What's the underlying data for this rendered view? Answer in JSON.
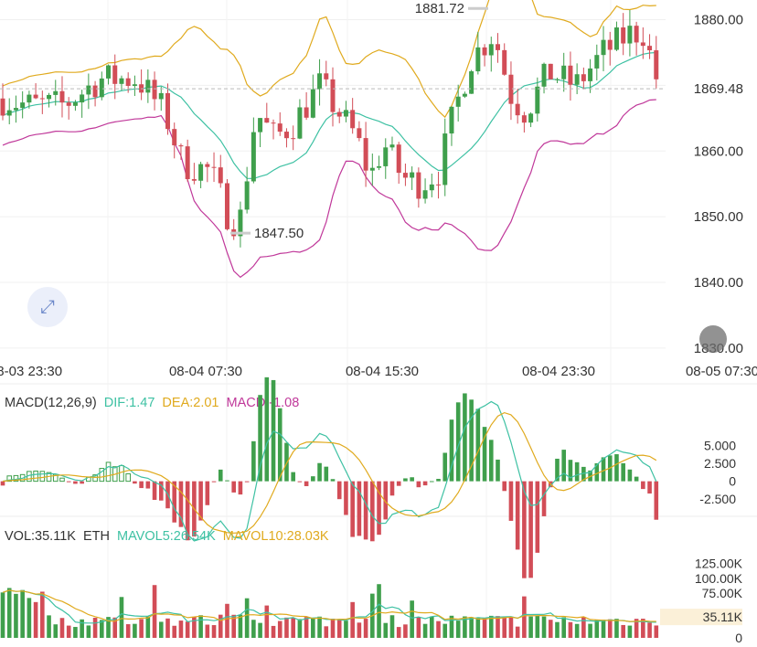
{
  "chart_data": [
    {
      "type": "candlestick",
      "pane": "price",
      "y_axis": {
        "ticks": [
          1830,
          1840,
          1850,
          1860,
          1870,
          1880
        ],
        "ylim": [
          1829,
          1883
        ],
        "tick_labels": [
          "1830.00",
          "1840.00",
          "1850.00",
          "1860.00",
          "1869.48",
          "1880.00"
        ]
      },
      "x_axis": {
        "tick_labels": [
          "08-03 23:30",
          "08-04 07:30",
          "08-04 15:30",
          "08-04 23:30",
          "08-05 07:30"
        ]
      },
      "last_price": 1869.48,
      "last_price_label": "1869.48",
      "high_annotation": {
        "value": 1881.72,
        "label": "1881.72"
      },
      "low_annotation": {
        "value": 1847.5,
        "label": "1847.50"
      },
      "overlays": [
        {
          "name": "MA",
          "color": "#3ec1a3"
        },
        {
          "name": "BOLL-UP",
          "color": "#e0aa1e"
        },
        {
          "name": "BOLL-LOW",
          "color": "#c0389a"
        }
      ],
      "colors": {
        "up": "#3f9f4c",
        "down": "#d24d57"
      },
      "candles_count": 100
    },
    {
      "type": "macd",
      "pane": "macd",
      "params_label": "MACD(12,26,9)",
      "dif": {
        "label": "DIF:",
        "value": "1.47",
        "color": "#3ec1a3"
      },
      "dea": {
        "label": "DEA:",
        "value": "2.01",
        "color": "#e0aa1e"
      },
      "macd": {
        "label": "MACD:",
        "value": "-1.08",
        "color": "#c0389a"
      },
      "y_axis": {
        "tick_labels": [
          "5.000",
          "2.500",
          "0",
          "-2.500"
        ],
        "ticks": [
          5,
          2.5,
          0,
          -2.5
        ],
        "ylim": [
          -4,
          8.5
        ]
      }
    },
    {
      "type": "bar",
      "pane": "volume",
      "vol": {
        "label": "VOL:",
        "value": "35.11K",
        "unit": "ETH",
        "color": "#333333"
      },
      "mavol5": {
        "label": "MAVOL5:",
        "value": "26.54K",
        "color": "#3ec1a3"
      },
      "mavol10": {
        "label": "MAVOL10:",
        "value": "28.03K",
        "color": "#e0aa1e"
      },
      "y_axis": {
        "tick_labels": [
          "125.00K",
          "100.00K",
          "75.00K",
          "35.11K",
          "0"
        ],
        "ticks": [
          125,
          100,
          75,
          35.11,
          0
        ],
        "ylim": [
          0,
          135
        ]
      }
    }
  ]
}
